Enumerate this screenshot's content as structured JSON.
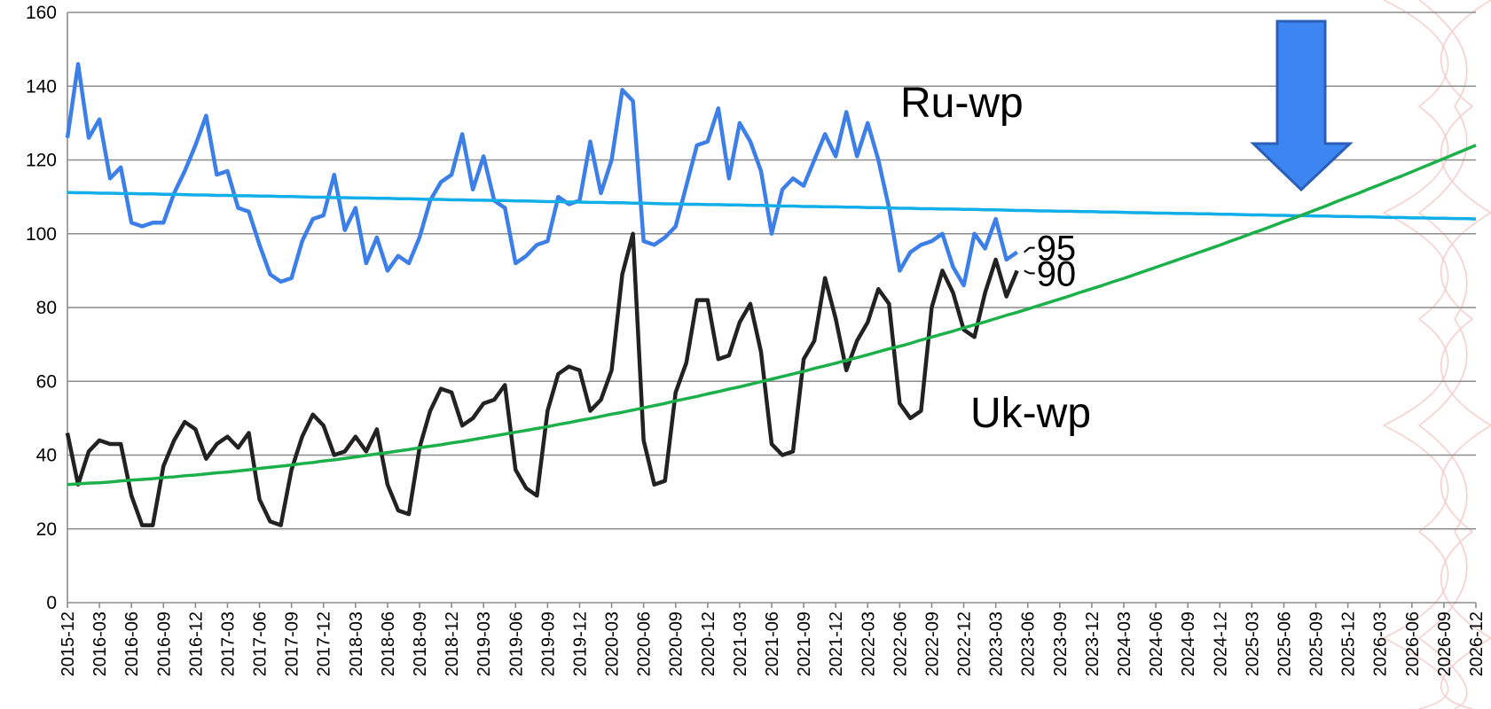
{
  "chart_data": {
    "type": "line",
    "categories": [
      "2015-12",
      null,
      null,
      "2016-03",
      null,
      null,
      "2016-06",
      null,
      null,
      "2016-09",
      null,
      null,
      "2016-12",
      null,
      null,
      "2017-03",
      null,
      null,
      "2017-06",
      null,
      null,
      "2017-09",
      null,
      null,
      "2017-12",
      null,
      null,
      "2018-03",
      null,
      null,
      "2018-06",
      null,
      null,
      "2018-09",
      null,
      null,
      "2018-12",
      null,
      null,
      "2019-03",
      null,
      null,
      "2019-06",
      null,
      null,
      "2019-09",
      null,
      null,
      "2019-12",
      null,
      null,
      "2020-03",
      null,
      null,
      "2020-06",
      null,
      null,
      "2020-09",
      null,
      null,
      "2020-12",
      null,
      null,
      "2021-03",
      null,
      null,
      "2021-06",
      null,
      null,
      "2021-09",
      null,
      null,
      "2021-12",
      null,
      null,
      "2022-03",
      null,
      null,
      "2022-06",
      null,
      null,
      "2022-09",
      null,
      null,
      "2022-12",
      null,
      null,
      "2023-03",
      null,
      null,
      "2023-06",
      null,
      null,
      "2023-09",
      null,
      null,
      "2023-12",
      null,
      null,
      "2024-03",
      null,
      null,
      "2024-06",
      null,
      null,
      "2024-09",
      null,
      null,
      "2024-12",
      null,
      null,
      "2025-03",
      null,
      null,
      "2025-06",
      null,
      null,
      "2025-09",
      null,
      null,
      "2025-12",
      null,
      null,
      "2026-03",
      null,
      null,
      "2026-06",
      null,
      null,
      "2026-09",
      null,
      null,
      "2026-12"
    ],
    "series": [
      {
        "name": "Ru-wp",
        "color": "#3d7fe8",
        "values": [
          126,
          146,
          126,
          131,
          115,
          118,
          103,
          102,
          103,
          103,
          111,
          117,
          124,
          132,
          116,
          117,
          107,
          106,
          97,
          89,
          87,
          88,
          98,
          104,
          105,
          116,
          101,
          107,
          92,
          99,
          90,
          94,
          92,
          99,
          109,
          114,
          116,
          127,
          112,
          121,
          109,
          107,
          92,
          94,
          97,
          98,
          110,
          108,
          109,
          125,
          111,
          120,
          139,
          136,
          98,
          97,
          99,
          102,
          113,
          124,
          125,
          134,
          115,
          130,
          125,
          117,
          100,
          112,
          115,
          113,
          120,
          127,
          121,
          133,
          121,
          130,
          120,
          107,
          90,
          95,
          97,
          98,
          100,
          91,
          86,
          100,
          96,
          104,
          93,
          95,
          null,
          null,
          null,
          null,
          null,
          null,
          null,
          null,
          null,
          null,
          null,
          null,
          null,
          null,
          null,
          null,
          null,
          null,
          null,
          null,
          null,
          null,
          null,
          null,
          null,
          null,
          null,
          null,
          null,
          null,
          null,
          null,
          null,
          null,
          null,
          null,
          null,
          null,
          null,
          null,
          null,
          null,
          null
        ]
      },
      {
        "name": "Uk-wp",
        "color": "#222222",
        "values": [
          46,
          32,
          41,
          44,
          43,
          43,
          29,
          21,
          21,
          37,
          44,
          49,
          47,
          39,
          43,
          45,
          42,
          46,
          28,
          22,
          21,
          36,
          45,
          51,
          48,
          40,
          41,
          45,
          41,
          47,
          32,
          25,
          24,
          42,
          52,
          58,
          57,
          48,
          50,
          54,
          55,
          59,
          36,
          31,
          29,
          52,
          62,
          64,
          63,
          52,
          55,
          63,
          89,
          100,
          44,
          32,
          33,
          57,
          65,
          82,
          82,
          66,
          67,
          76,
          81,
          68,
          43,
          40,
          41,
          66,
          71,
          88,
          77,
          63,
          71,
          76,
          85,
          81,
          54,
          50,
          52,
          80,
          90,
          84,
          74,
          72,
          84,
          93,
          83,
          90,
          null,
          null,
          null,
          null,
          null,
          null,
          null,
          null,
          null,
          null,
          null,
          null,
          null,
          null,
          null,
          null,
          null,
          null,
          null,
          null,
          null,
          null,
          null,
          null,
          null,
          null,
          null,
          null,
          null,
          null,
          null,
          null,
          null,
          null,
          null,
          null,
          null,
          null,
          null,
          null,
          null,
          null,
          null
        ]
      },
      {
        "color": "#12aee8",
        "values": [
          111.2,
          111.1,
          111.1,
          111.0,
          111.0,
          110.9,
          110.9,
          110.8,
          110.8,
          110.7,
          110.7,
          110.6,
          110.5,
          110.5,
          110.4,
          110.4,
          110.3,
          110.3,
          110.2,
          110.2,
          110.1,
          110.1,
          110.0,
          109.9,
          109.9,
          109.8,
          109.8,
          109.7,
          109.7,
          109.6,
          109.6,
          109.5,
          109.5,
          109.4,
          109.3,
          109.3,
          109.2,
          109.2,
          109.1,
          109.1,
          109.0,
          109.0,
          108.9,
          108.9,
          108.8,
          108.7,
          108.7,
          108.6,
          108.6,
          108.5,
          108.5,
          108.4,
          108.4,
          108.3,
          108.3,
          108.2,
          108.1,
          108.1,
          108.0,
          108.0,
          107.9,
          107.9,
          107.8,
          107.8,
          107.7,
          107.7,
          107.6,
          107.5,
          107.5,
          107.4,
          107.4,
          107.3,
          107.3,
          107.2,
          107.2,
          107.1,
          107.1,
          107.0,
          106.9,
          106.9,
          106.8,
          106.8,
          106.7,
          106.7,
          106.6,
          106.6,
          106.5,
          106.5,
          106.4,
          106.3,
          106.3,
          106.2,
          106.2,
          106.1,
          106.1,
          106.0,
          106.0,
          105.9,
          105.9,
          105.8,
          105.7,
          105.7,
          105.6,
          105.6,
          105.5,
          105.5,
          105.4,
          105.4,
          105.3,
          105.3,
          105.2,
          105.1,
          105.1,
          105.0,
          105.0,
          104.9,
          104.9,
          104.8,
          104.8,
          104.7,
          104.7,
          104.6,
          104.6,
          104.5,
          104.4,
          104.4,
          104.3,
          104.3,
          104.2,
          104.2,
          104.1,
          104.1,
          104.0
        ]
      },
      {
        "color": "#1bb04a",
        "values": [
          32.0,
          32.2,
          32.4,
          32.5,
          32.7,
          33.0,
          33.2,
          33.4,
          33.6,
          33.9,
          34.1,
          34.4,
          34.6,
          34.9,
          35.2,
          35.4,
          35.7,
          36.0,
          36.4,
          36.7,
          37.0,
          37.3,
          37.7,
          38.0,
          38.4,
          38.7,
          39.1,
          39.5,
          39.9,
          40.3,
          40.7,
          41.1,
          41.5,
          42.0,
          42.4,
          42.8,
          43.3,
          43.7,
          44.2,
          44.7,
          45.2,
          45.7,
          46.2,
          46.7,
          47.2,
          47.7,
          48.3,
          48.8,
          49.4,
          49.9,
          50.5,
          51.1,
          51.6,
          52.2,
          52.8,
          53.4,
          54.0,
          54.7,
          55.3,
          55.9,
          56.6,
          57.2,
          57.9,
          58.5,
          59.2,
          59.9,
          60.6,
          61.3,
          62.0,
          62.7,
          63.5,
          64.2,
          64.9,
          65.7,
          66.4,
          67.2,
          68.0,
          68.8,
          69.5,
          70.3,
          71.2,
          72.0,
          72.8,
          73.6,
          74.5,
          75.3,
          76.1,
          77.0,
          77.9,
          78.7,
          79.6,
          80.5,
          81.4,
          82.3,
          83.2,
          84.2,
          85.1,
          86.0,
          87.0,
          87.9,
          88.9,
          89.9,
          90.9,
          91.9,
          92.9,
          93.9,
          94.9,
          95.9,
          96.9,
          98.0,
          99.0,
          100.1,
          101.1,
          102.2,
          103.3,
          104.3,
          105.4,
          106.5,
          107.6,
          108.8,
          109.9,
          111.0,
          112.2,
          113.3,
          114.5,
          115.6,
          116.8,
          118.0,
          119.2,
          120.4,
          121.6,
          122.8,
          124.0
        ]
      }
    ],
    "ylim": [
      0,
      160
    ],
    "yticks": [
      0,
      20,
      40,
      60,
      80,
      100,
      120,
      140,
      160
    ],
    "grid": true
  }
}
